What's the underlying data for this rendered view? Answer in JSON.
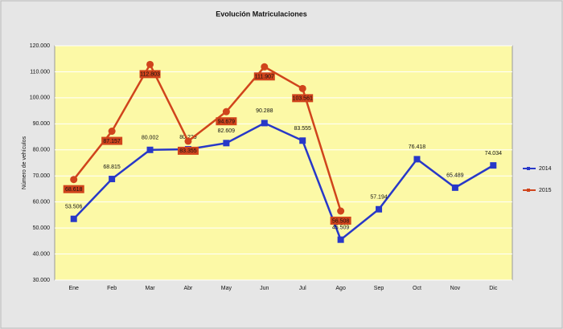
{
  "chart_data": {
    "type": "line",
    "title": "Evolución  Matriculaciones",
    "y_label": "Número de vehículos",
    "categories": [
      "Ene",
      "Feb",
      "Mar",
      "Abr",
      "May",
      "Jun",
      "Jul",
      "Ago",
      "Sep",
      "Oct",
      "Nov",
      "Dic"
    ],
    "series": [
      {
        "name": "2014",
        "color": "#2838c8",
        "marker": "square",
        "values": [
          53506,
          68815,
          80002,
          80229,
          82609,
          90288,
          83555,
          45509,
          57194,
          76418,
          65489,
          74034
        ],
        "value_labels": [
          "53.506",
          "68.815",
          "80.002",
          "80.229",
          "82.609",
          "90.288",
          "83.555",
          "45.509",
          "57.194",
          "76.418",
          "65.489",
          "74.034"
        ]
      },
      {
        "name": "2015",
        "color": "#d0441c",
        "marker": "circle",
        "values": [
          68618,
          87157,
          112803,
          83355,
          94679,
          111907,
          103561,
          56508,
          null,
          null,
          null,
          null
        ],
        "value_labels": [
          "68.618",
          "87.157",
          "112.803",
          "83.355",
          "94.679",
          "111.907",
          "103.561",
          "56.508",
          null,
          null,
          null,
          null
        ]
      }
    ],
    "ylim": [
      30000,
      120000
    ],
    "yticks": [
      {
        "value": 30000,
        "label": "30.000"
      },
      {
        "value": 40000,
        "label": "40.000"
      },
      {
        "value": 50000,
        "label": "50.000"
      },
      {
        "value": 60000,
        "label": "60.000"
      },
      {
        "value": 70000,
        "label": "70.000"
      },
      {
        "value": 80000,
        "label": "80.000"
      },
      {
        "value": 90000,
        "label": "90.000"
      },
      {
        "value": 100000,
        "label": "100.000"
      },
      {
        "value": 110000,
        "label": "110.000"
      },
      {
        "value": 120000,
        "label": "120.000"
      }
    ],
    "grid": true,
    "legend": "right"
  }
}
